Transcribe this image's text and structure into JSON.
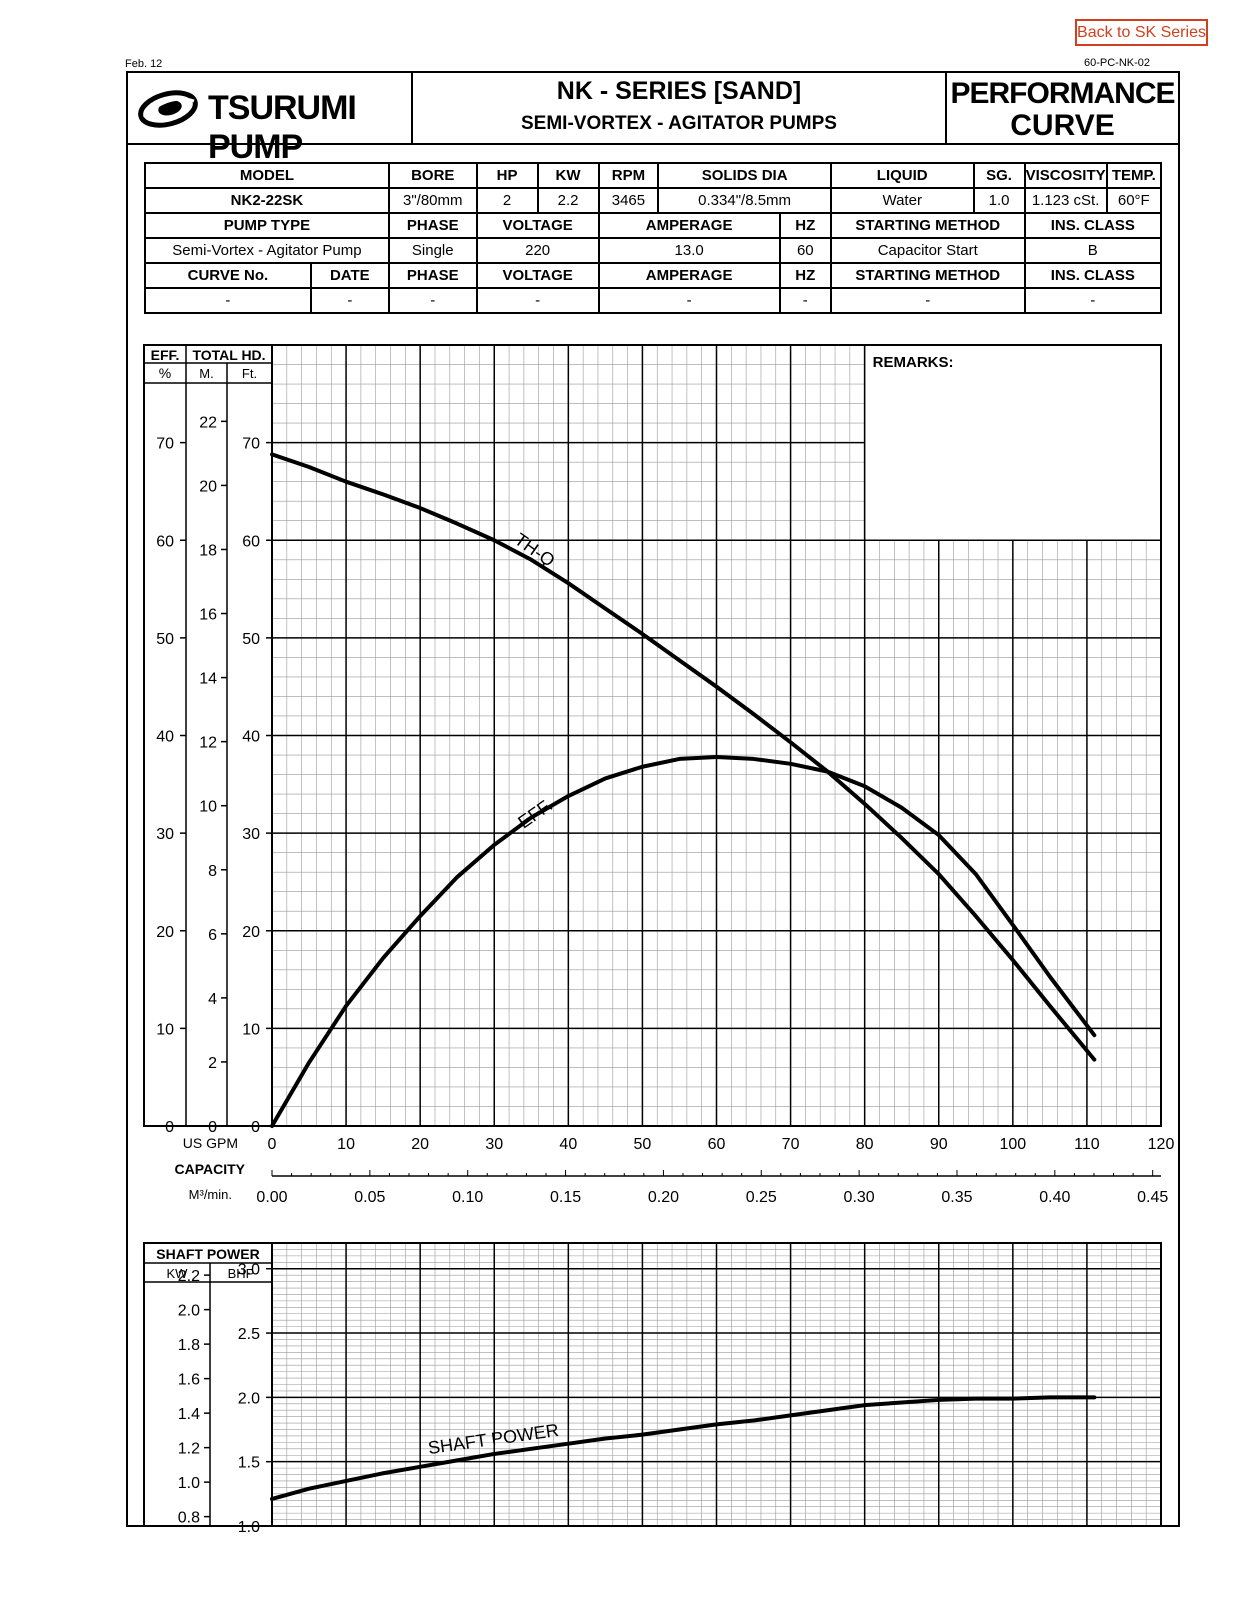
{
  "back_link": "Back to SK Series",
  "doc_date": "Feb. 12",
  "doc_code": "60-PC-NK-02",
  "header": {
    "brand": "TSURUMI PUMP",
    "series_title": "NK - SERIES [SAND]",
    "series_subtitle": "SEMI-VORTEX - AGITATOR PUMPS",
    "doc_type_line1": "PERFORMANCE",
    "doc_type_line2": "CURVE"
  },
  "spec": {
    "row1_headers": [
      "MODEL",
      "BORE",
      "HP",
      "KW",
      "RPM",
      "SOLIDS DIA",
      "LIQUID",
      "SG.",
      "VISCOSITY",
      "TEMP."
    ],
    "row1_values": [
      "NK2-22SK",
      "3\"/80mm",
      "2",
      "2.2",
      "3465",
      "0.334\"/8.5mm",
      "Water",
      "1.0",
      "1.123 cSt.",
      "60°F"
    ],
    "row2_headers": [
      "PUMP TYPE",
      "PHASE",
      "VOLTAGE",
      "AMPERAGE",
      "HZ",
      "STARTING METHOD",
      "INS. CLASS"
    ],
    "row2_values": [
      "Semi-Vortex - Agitator Pump",
      "Single",
      "220",
      "13.0",
      "60",
      "Capacitor Start",
      "B"
    ],
    "row3_headers": [
      "CURVE No.",
      "DATE",
      "PHASE",
      "VOLTAGE",
      "AMPERAGE",
      "HZ",
      "STARTING METHOD",
      "INS. CLASS"
    ],
    "row3_values": [
      "-",
      "-",
      "-",
      "-",
      "-",
      "-",
      "-",
      "-"
    ]
  },
  "remarks_label": "REMARKS:",
  "chart_data": [
    {
      "type": "line",
      "axis_headers": {
        "eff": "EFF.",
        "eff_unit": "%",
        "total_hd": "TOTAL HD.",
        "m_unit": "M.",
        "ft_unit": "Ft."
      },
      "x_label": "US GPM",
      "x_ticks": [
        0,
        10,
        20,
        30,
        40,
        50,
        60,
        70,
        80,
        90,
        100,
        110,
        120
      ],
      "x_alt_label": "CAPACITY",
      "x_alt_unit": "M³/min.",
      "x_alt_ticks": [
        "0.00",
        "0.05",
        "0.10",
        "0.15",
        "0.20",
        "0.25",
        "0.30",
        "0.35",
        "0.40",
        "0.45"
      ],
      "xlim": [
        0,
        120
      ],
      "eff_ticks": [
        0,
        10,
        20,
        30,
        40,
        50,
        60,
        70
      ],
      "head_m_ticks": [
        0,
        2,
        4,
        6,
        8,
        10,
        12,
        14,
        16,
        18,
        20,
        22
      ],
      "head_ft_ticks": [
        0,
        10,
        20,
        30,
        40,
        50,
        60,
        70
      ],
      "ylim_ft": [
        0,
        80
      ],
      "grid": true,
      "series": [
        {
          "name": "TH-Q",
          "unit": "Ft.",
          "x": [
            0,
            5,
            10,
            15,
            20,
            25,
            30,
            35,
            40,
            45,
            50,
            55,
            60,
            65,
            70,
            75,
            80,
            85,
            90,
            95,
            100,
            105,
            111
          ],
          "y": [
            68.8,
            67.5,
            66.0,
            64.7,
            63.3,
            61.7,
            60.0,
            58.0,
            55.6,
            53.0,
            50.4,
            47.7,
            45.0,
            42.2,
            39.3,
            36.3,
            33.0,
            29.5,
            25.8,
            21.5,
            17.0,
            12.3,
            6.8
          ]
        },
        {
          "name": "EFF.",
          "unit": "%",
          "x": [
            0,
            5,
            10,
            15,
            20,
            25,
            30,
            35,
            40,
            45,
            50,
            55,
            60,
            65,
            70,
            75,
            80,
            85,
            90,
            95,
            100,
            105,
            111
          ],
          "y": [
            0,
            6.5,
            12.3,
            17.2,
            21.5,
            25.5,
            28.8,
            31.6,
            33.8,
            35.6,
            36.8,
            37.6,
            37.8,
            37.6,
            37.1,
            36.3,
            34.8,
            32.6,
            29.8,
            25.8,
            20.6,
            15.3,
            9.3
          ]
        }
      ],
      "annotations": [
        "TH-Q",
        "EFF."
      ]
    },
    {
      "type": "line",
      "axis_headers": {
        "shaft_power": "SHAFT POWER",
        "kw_unit": "KW",
        "bhp_unit": "BHP"
      },
      "kw_ticks": [
        "0.8",
        "1.0",
        "1.2",
        "1.4",
        "1.6",
        "1.8",
        "2.0",
        "2.2"
      ],
      "bhp_ticks": [
        "1.0",
        "1.5",
        "2.0",
        "2.5",
        "3.0"
      ],
      "xlim": [
        0,
        120
      ],
      "ylim_bhp": [
        1.0,
        3.2
      ],
      "grid": true,
      "series": [
        {
          "name": "SHAFT POWER",
          "unit": "BHP",
          "x": [
            0,
            5,
            10,
            15,
            20,
            25,
            30,
            35,
            40,
            45,
            50,
            55,
            60,
            65,
            70,
            75,
            80,
            85,
            90,
            95,
            100,
            105,
            111
          ],
          "y": [
            1.21,
            1.29,
            1.35,
            1.41,
            1.46,
            1.51,
            1.56,
            1.6,
            1.64,
            1.68,
            1.71,
            1.75,
            1.79,
            1.82,
            1.86,
            1.9,
            1.94,
            1.96,
            1.98,
            1.99,
            1.99,
            2.0,
            2.0
          ]
        }
      ],
      "annotations": [
        "SHAFT POWER"
      ]
    }
  ]
}
